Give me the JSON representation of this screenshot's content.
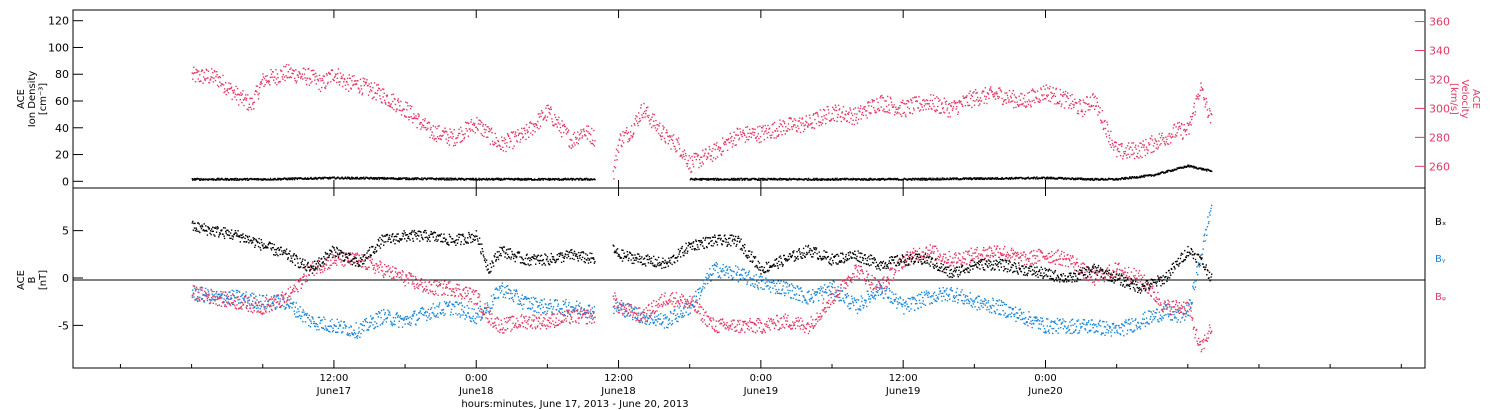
{
  "chart_data": [
    {
      "type": "scatter",
      "panel": "top",
      "ylabel_left": [
        "ACE",
        "Ion Density",
        "[cm⁻³]"
      ],
      "ylabel_right": [
        "ACE",
        "Velocity",
        "[km/s]"
      ],
      "ylim_left": [
        -5,
        128
      ],
      "yticks_left": [
        0,
        20,
        40,
        60,
        80,
        100,
        120
      ],
      "ylim_right": [
        245,
        368
      ],
      "yticks_right": [
        260,
        280,
        300,
        320,
        340,
        360
      ],
      "right_axis_color": "#e03a64",
      "series": [
        {
          "axis": "left",
          "color": "#000000",
          "x": [
            0,
            6,
            12,
            18,
            24,
            30,
            34,
            35.5,
            42,
            48,
            54,
            60,
            66,
            72,
            76,
            78,
            81,
            84,
            86
          ],
          "y": [
            2,
            2,
            3,
            2.5,
            2,
            2,
            2,
            null,
            2,
            2,
            2,
            2,
            2.5,
            3,
            2,
            2,
            5,
            12,
            8
          ]
        },
        {
          "axis": "right",
          "color": "#e03a64",
          "x": [
            0,
            2,
            3,
            4,
            5,
            6,
            8,
            10,
            11,
            12,
            13,
            14,
            16,
            18,
            20,
            22,
            24,
            26,
            28,
            30,
            32,
            33,
            34,
            35,
            35.5,
            36,
            37,
            38,
            40,
            41,
            42,
            44,
            46,
            48,
            50,
            52,
            54,
            56,
            58,
            60,
            62,
            64,
            66,
            68,
            70,
            72,
            74,
            75,
            76,
            78,
            80,
            82,
            83,
            84,
            85,
            86
          ],
          "y": [
            323,
            322,
            315,
            308,
            303,
            320,
            325,
            322,
            317,
            325,
            318,
            317,
            310,
            300,
            285,
            280,
            290,
            275,
            282,
            298,
            278,
            285,
            280,
            null,
            255,
            278,
            285,
            300,
            280,
            275,
            262,
            270,
            282,
            283,
            288,
            290,
            298,
            295,
            305,
            300,
            305,
            300,
            308,
            310,
            305,
            312,
            305,
            300,
            307,
            270,
            272,
            280,
            285,
            285,
            315,
            290
          ]
        }
      ]
    },
    {
      "type": "scatter",
      "panel": "bottom",
      "ylabel_left": [
        "ACE",
        "B",
        "[nT]"
      ],
      "ylim": [
        -9.5,
        9.5
      ],
      "yticks": [
        -5,
        0,
        5
      ],
      "zero_line": true,
      "series": [
        {
          "name": "Bₓ",
          "color": "#000000",
          "x": [
            0,
            2,
            4,
            6,
            8,
            10,
            12,
            14,
            16,
            18,
            20,
            22,
            24,
            25,
            26,
            28,
            30,
            32,
            34,
            35,
            35.5,
            36,
            38,
            40,
            42,
            44,
            46,
            48,
            50,
            52,
            54,
            56,
            58,
            60,
            62,
            64,
            66,
            68,
            70,
            72,
            74,
            76,
            78,
            80,
            82,
            84,
            85,
            86
          ],
          "y": [
            5.5,
            5,
            4.5,
            3.5,
            2.5,
            1,
            3,
            1.5,
            4,
            4.5,
            4.5,
            4,
            4.5,
            1,
            3,
            2,
            2,
            2.5,
            2,
            null,
            3,
            2.5,
            2,
            1.5,
            3.5,
            4,
            4,
            1,
            2,
            3,
            2,
            2.5,
            1.5,
            2,
            2,
            0.5,
            1.5,
            1.5,
            1,
            0.5,
            0,
            1,
            0,
            -1,
            0,
            3,
            2,
            0
          ]
        },
        {
          "name": "Bᵧ",
          "color": "#1a86d6",
          "x": [
            0,
            2,
            4,
            6,
            8,
            10,
            12,
            14,
            16,
            18,
            20,
            22,
            24,
            25,
            26,
            28,
            30,
            32,
            34,
            35,
            35.5,
            36,
            38,
            40,
            42,
            44,
            46,
            48,
            50,
            52,
            54,
            56,
            58,
            60,
            62,
            64,
            66,
            68,
            70,
            72,
            74,
            76,
            78,
            80,
            82,
            83,
            84,
            85,
            86
          ],
          "y": [
            -1.5,
            -2,
            -2,
            -2.5,
            -2.5,
            -4.5,
            -5,
            -5.5,
            -4,
            -4.5,
            -3.5,
            -3,
            -4,
            -3,
            -1,
            -2.5,
            -3,
            -3,
            -3.5,
            null,
            -3,
            -3,
            -4,
            -4.5,
            -3,
            1,
            0.5,
            -0.5,
            -1,
            -2,
            -1,
            -3,
            -1,
            -3,
            -2,
            -1.5,
            -2.5,
            -3,
            -4,
            -5,
            -5,
            -5,
            -5.5,
            -4.5,
            -3.5,
            -4,
            -3.5,
            2,
            8
          ]
        },
        {
          "name": "Bᵩ",
          "color": "#e03a64",
          "x": [
            0,
            2,
            4,
            6,
            8,
            10,
            12,
            14,
            16,
            18,
            20,
            22,
            24,
            25,
            26,
            28,
            30,
            32,
            34,
            35,
            35.5,
            36,
            38,
            40,
            42,
            44,
            46,
            48,
            50,
            52,
            54,
            56,
            58,
            60,
            62,
            64,
            66,
            68,
            70,
            72,
            74,
            76,
            78,
            80,
            82,
            84,
            85,
            86
          ],
          "y": [
            -1.5,
            -2,
            -2.5,
            -3,
            -2,
            1,
            2,
            2,
            1,
            0,
            -1,
            -1,
            -2,
            -4,
            -5,
            -4.5,
            -4.5,
            -4,
            -4,
            null,
            -2,
            -3,
            -4,
            -2,
            -2.5,
            -5,
            -5,
            -5,
            -4.5,
            -5,
            -2,
            1,
            -1,
            2,
            3,
            2,
            2.5,
            3,
            2,
            2.5,
            2,
            0,
            1,
            0,
            -3,
            -3,
            -7.5,
            -5
          ]
        }
      ]
    },
    {
      "type": "axis",
      "xlim": [
        -10,
        104
      ],
      "xticks": [
        {
          "x": 12,
          "top": "12:00",
          "bottom": "June17"
        },
        {
          "x": 24,
          "top": "0:00",
          "bottom": "June18"
        },
        {
          "x": 36,
          "top": "12:00",
          "bottom": "June18"
        },
        {
          "x": 48,
          "top": "0:00",
          "bottom": "June19"
        },
        {
          "x": 60,
          "top": "12:00",
          "bottom": "June19"
        },
        {
          "x": 72,
          "top": "0:00",
          "bottom": "June20"
        }
      ],
      "xlabel": "hours:minutes, June 17, 2013 - June 20, 2013"
    }
  ]
}
